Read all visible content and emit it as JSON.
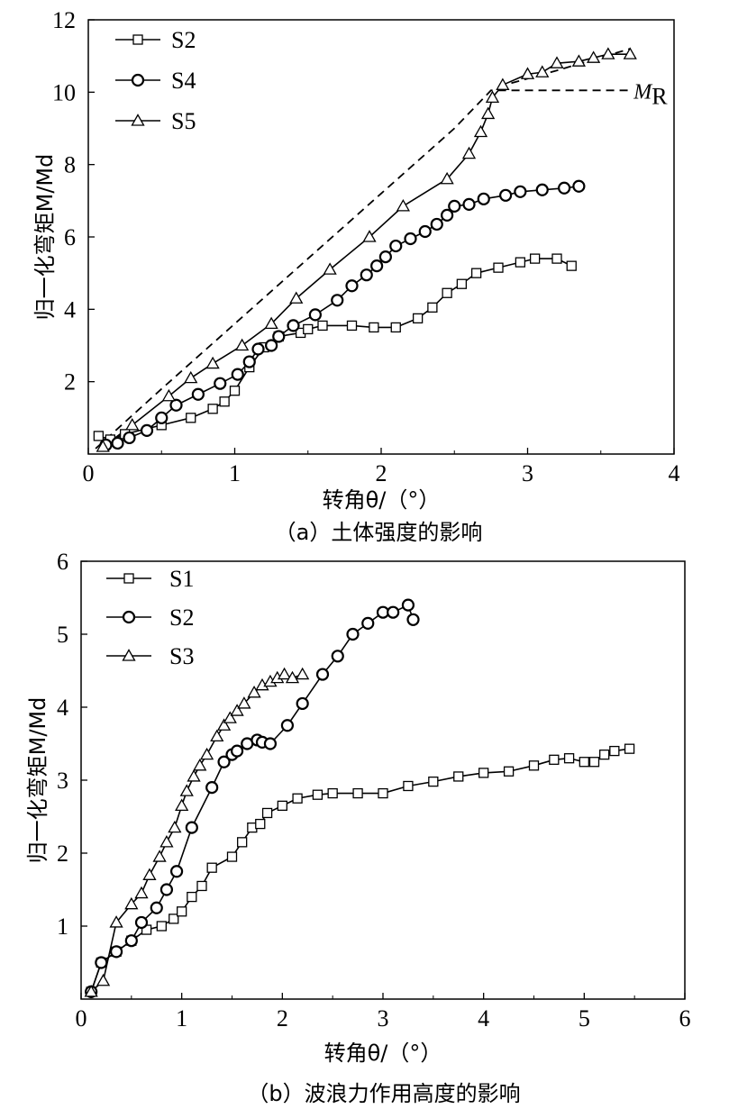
{
  "chart_data": [
    {
      "type": "line",
      "caption": "（a）土体强度的影响",
      "xlabel": "转角θ/（°）",
      "ylabel": "归一化弯矩M/Md",
      "xlim": [
        0,
        4
      ],
      "ylim": [
        0,
        12
      ],
      "xticks": [
        "0",
        "1",
        "2",
        "3",
        "4"
      ],
      "yticks": [
        "2",
        "4",
        "6",
        "8",
        "10",
        "12"
      ],
      "reference_line": {
        "label": "M",
        "subscript": "R",
        "style": "dashed",
        "points": [
          [
            0.05,
            0.15
          ],
          [
            0.5,
            1.8
          ],
          [
            1.0,
            3.6
          ],
          [
            1.5,
            5.4
          ],
          [
            2.0,
            7.2
          ],
          [
            2.5,
            9.0
          ],
          [
            2.75,
            10.05
          ],
          [
            3.7,
            10.05
          ]
        ]
      },
      "upper_dashed": {
        "points": [
          [
            2.8,
            10.15
          ],
          [
            3.2,
            10.6
          ],
          [
            3.7,
            11.2
          ]
        ]
      },
      "series": [
        {
          "name": "S2",
          "marker": "square",
          "points": [
            [
              0.07,
              0.5
            ],
            [
              0.15,
              0.4
            ],
            [
              0.25,
              0.55
            ],
            [
              0.5,
              0.8
            ],
            [
              0.7,
              1.0
            ],
            [
              0.85,
              1.25
            ],
            [
              0.93,
              1.45
            ],
            [
              1.0,
              1.75
            ],
            [
              1.1,
              2.4
            ],
            [
              1.2,
              2.95
            ],
            [
              1.3,
              3.25
            ],
            [
              1.45,
              3.35
            ],
            [
              1.5,
              3.45
            ],
            [
              1.6,
              3.55
            ],
            [
              1.8,
              3.55
            ],
            [
              1.95,
              3.5
            ],
            [
              2.1,
              3.5
            ],
            [
              2.25,
              3.75
            ],
            [
              2.35,
              4.05
            ],
            [
              2.45,
              4.45
            ],
            [
              2.55,
              4.7
            ],
            [
              2.65,
              5.0
            ],
            [
              2.8,
              5.15
            ],
            [
              2.95,
              5.3
            ],
            [
              3.05,
              5.4
            ],
            [
              3.2,
              5.4
            ],
            [
              3.3,
              5.2
            ]
          ]
        },
        {
          "name": "S4",
          "marker": "circle",
          "points": [
            [
              0.12,
              0.25
            ],
            [
              0.2,
              0.3
            ],
            [
              0.28,
              0.45
            ],
            [
              0.4,
              0.65
            ],
            [
              0.5,
              1.0
            ],
            [
              0.6,
              1.35
            ],
            [
              0.75,
              1.65
            ],
            [
              0.9,
              1.95
            ],
            [
              1.02,
              2.2
            ],
            [
              1.1,
              2.55
            ],
            [
              1.16,
              2.9
            ],
            [
              1.25,
              3.0
            ],
            [
              1.3,
              3.25
            ],
            [
              1.4,
              3.55
            ],
            [
              1.55,
              3.85
            ],
            [
              1.7,
              4.25
            ],
            [
              1.8,
              4.65
            ],
            [
              1.9,
              4.95
            ],
            [
              1.97,
              5.2
            ],
            [
              2.03,
              5.45
            ],
            [
              2.1,
              5.75
            ],
            [
              2.2,
              5.95
            ],
            [
              2.3,
              6.15
            ],
            [
              2.38,
              6.35
            ],
            [
              2.45,
              6.6
            ],
            [
              2.5,
              6.85
            ],
            [
              2.6,
              6.9
            ],
            [
              2.7,
              7.05
            ],
            [
              2.85,
              7.15
            ],
            [
              2.95,
              7.25
            ],
            [
              3.1,
              7.3
            ],
            [
              3.25,
              7.35
            ],
            [
              3.35,
              7.4
            ]
          ]
        },
        {
          "name": "S5",
          "marker": "triangle",
          "points": [
            [
              0.1,
              0.2
            ],
            [
              0.3,
              0.8
            ],
            [
              0.55,
              1.6
            ],
            [
              0.7,
              2.1
            ],
            [
              0.85,
              2.5
            ],
            [
              1.05,
              3.0
            ],
            [
              1.25,
              3.6
            ],
            [
              1.42,
              4.3
            ],
            [
              1.65,
              5.1
            ],
            [
              1.92,
              6.0
            ],
            [
              2.15,
              6.85
            ],
            [
              2.45,
              7.6
            ],
            [
              2.6,
              8.3
            ],
            [
              2.68,
              8.9
            ],
            [
              2.73,
              9.4
            ],
            [
              2.76,
              9.85
            ],
            [
              2.83,
              10.2
            ],
            [
              3.0,
              10.5
            ],
            [
              3.1,
              10.55
            ],
            [
              3.2,
              10.8
            ],
            [
              3.35,
              10.85
            ],
            [
              3.45,
              10.95
            ],
            [
              3.55,
              11.05
            ],
            [
              3.7,
              11.05
            ]
          ]
        }
      ],
      "legend": "top-left"
    },
    {
      "type": "line",
      "caption": "（b）波浪力作用高度的影响",
      "xlabel": "转角θ/（°）",
      "ylabel": "归一化弯矩M/Md",
      "xlim": [
        0,
        6
      ],
      "ylim": [
        0,
        6
      ],
      "xticks": [
        "0",
        "1",
        "2",
        "3",
        "4",
        "5",
        "6"
      ],
      "yticks": [
        "1",
        "2",
        "3",
        "4",
        "5",
        "6"
      ],
      "series": [
        {
          "name": "S1",
          "marker": "square",
          "points": [
            [
              0.1,
              0.1
            ],
            [
              0.2,
              0.5
            ],
            [
              0.35,
              0.65
            ],
            [
              0.5,
              0.8
            ],
            [
              0.65,
              0.95
            ],
            [
              0.8,
              1.0
            ],
            [
              0.92,
              1.1
            ],
            [
              1.0,
              1.2
            ],
            [
              1.1,
              1.4
            ],
            [
              1.2,
              1.55
            ],
            [
              1.3,
              1.8
            ],
            [
              1.5,
              1.95
            ],
            [
              1.6,
              2.15
            ],
            [
              1.7,
              2.35
            ],
            [
              1.78,
              2.4
            ],
            [
              1.85,
              2.55
            ],
            [
              2.0,
              2.65
            ],
            [
              2.15,
              2.75
            ],
            [
              2.35,
              2.8
            ],
            [
              2.5,
              2.82
            ],
            [
              2.75,
              2.82
            ],
            [
              3.0,
              2.82
            ],
            [
              3.25,
              2.92
            ],
            [
              3.5,
              2.98
            ],
            [
              3.75,
              3.05
            ],
            [
              4.0,
              3.1
            ],
            [
              4.25,
              3.12
            ],
            [
              4.5,
              3.2
            ],
            [
              4.7,
              3.28
            ],
            [
              4.85,
              3.3
            ],
            [
              5.0,
              3.25
            ],
            [
              5.1,
              3.25
            ],
            [
              5.2,
              3.35
            ],
            [
              5.3,
              3.4
            ],
            [
              5.45,
              3.43
            ]
          ]
        },
        {
          "name": "S2",
          "marker": "circle",
          "points": [
            [
              0.1,
              0.1
            ],
            [
              0.2,
              0.5
            ],
            [
              0.35,
              0.65
            ],
            [
              0.5,
              0.8
            ],
            [
              0.6,
              1.05
            ],
            [
              0.75,
              1.25
            ],
            [
              0.85,
              1.5
            ],
            [
              0.95,
              1.75
            ],
            [
              1.1,
              2.35
            ],
            [
              1.3,
              2.9
            ],
            [
              1.42,
              3.25
            ],
            [
              1.5,
              3.35
            ],
            [
              1.55,
              3.4
            ],
            [
              1.65,
              3.5
            ],
            [
              1.75,
              3.55
            ],
            [
              1.8,
              3.52
            ],
            [
              1.88,
              3.5
            ],
            [
              2.05,
              3.75
            ],
            [
              2.2,
              4.05
            ],
            [
              2.4,
              4.45
            ],
            [
              2.55,
              4.7
            ],
            [
              2.7,
              5.0
            ],
            [
              2.85,
              5.15
            ],
            [
              3.0,
              5.3
            ],
            [
              3.1,
              5.3
            ],
            [
              3.25,
              5.4
            ],
            [
              3.3,
              5.2
            ]
          ]
        },
        {
          "name": "S3",
          "marker": "triangle",
          "points": [
            [
              0.1,
              0.1
            ],
            [
              0.22,
              0.25
            ],
            [
              0.35,
              1.05
            ],
            [
              0.5,
              1.3
            ],
            [
              0.6,
              1.45
            ],
            [
              0.68,
              1.7
            ],
            [
              0.78,
              1.95
            ],
            [
              0.85,
              2.15
            ],
            [
              0.93,
              2.35
            ],
            [
              1.0,
              2.65
            ],
            [
              1.05,
              2.85
            ],
            [
              1.12,
              3.05
            ],
            [
              1.18,
              3.2
            ],
            [
              1.25,
              3.35
            ],
            [
              1.35,
              3.6
            ],
            [
              1.42,
              3.75
            ],
            [
              1.48,
              3.85
            ],
            [
              1.55,
              3.95
            ],
            [
              1.62,
              4.05
            ],
            [
              1.72,
              4.2
            ],
            [
              1.8,
              4.3
            ],
            [
              1.88,
              4.35
            ],
            [
              1.95,
              4.4
            ],
            [
              2.02,
              4.45
            ],
            [
              2.1,
              4.4
            ],
            [
              2.2,
              4.45
            ]
          ]
        }
      ],
      "legend": "top-left"
    }
  ]
}
